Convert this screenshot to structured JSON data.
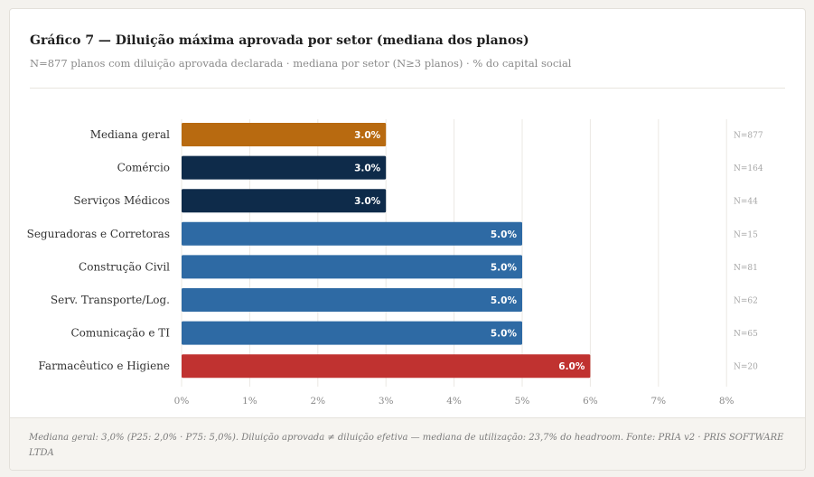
{
  "header": {
    "title": "Gráfico 7 — Diluição máxima aprovada por setor (mediana dos planos)",
    "subtitle": "N=877 planos com diluição aprovada declarada · mediana por setor (N≥3 planos) · % do capital social"
  },
  "footer": {
    "note": "Mediana geral: 3,0% (P25: 2,0% · P75: 5,0%). Diluição aprovada ≠ diluição efetiva — mediana de utilização: 23,7% do headroom. Fonte: PRIA v2 · PRIS SOFTWARE LTDA"
  },
  "chart_data": {
    "type": "bar",
    "orientation": "horizontal",
    "title": "Gráfico 7 — Diluição máxima aprovada por setor (mediana dos planos)",
    "xlabel": "",
    "ylabel": "",
    "xlim": [
      0,
      8
    ],
    "x_ticks": [
      "0%",
      "1%",
      "2%",
      "3%",
      "4%",
      "5%",
      "6%",
      "7%",
      "8%"
    ],
    "grid": true,
    "categories": [
      "Mediana geral",
      "Comércio",
      "Serviços Médicos",
      "Seguradoras e Corretoras",
      "Construção Civil",
      "Serv. Transporte/Log.",
      "Comunicação e TI",
      "Farmacêutico e Higiene"
    ],
    "values": [
      3.0,
      3.0,
      3.0,
      5.0,
      5.0,
      5.0,
      5.0,
      6.0
    ],
    "value_labels": [
      "3.0%",
      "3.0%",
      "3.0%",
      "5.0%",
      "5.0%",
      "5.0%",
      "5.0%",
      "6.0%"
    ],
    "n_labels": [
      "N=877",
      "N=164",
      "N=44",
      "N=15",
      "N=81",
      "N=62",
      "N=65",
      "N=20"
    ],
    "colors": [
      "#b86a10",
      "#0e2b4a",
      "#0e2b4a",
      "#2e6aa4",
      "#2e6aa4",
      "#2e6aa4",
      "#2e6aa4",
      "#c03230"
    ]
  },
  "colors": {
    "gridline": "#ebe8e3",
    "category_text": "#333333",
    "tick_text": "#8a8a8a",
    "n_text": "#a6a6a6",
    "value_text": "#ffffff"
  }
}
